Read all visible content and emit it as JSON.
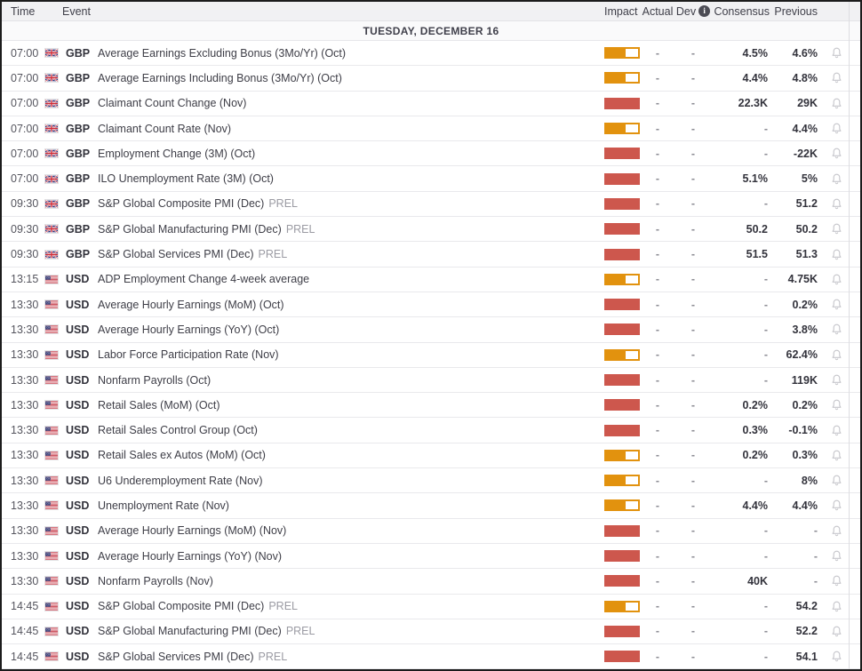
{
  "table": {
    "columns": {
      "time": "Time",
      "event": "Event",
      "impact": "Impact",
      "actual": "Actual",
      "dev": "Dev",
      "consensus": "Consensus",
      "previous": "Previous"
    },
    "dev_info_glyph": "i",
    "day_banner": "TUESDAY, DECEMBER 16"
  },
  "colors": {
    "impact_high": "#cd574d",
    "impact_medium": "#e2920e",
    "bell": "#c6c6cb"
  },
  "rows": [
    {
      "time": "07:00",
      "currency": "GBP",
      "country": "gb",
      "event": "Average Earnings Excluding Bonus (3Mo/Yr) (Oct)",
      "note": "",
      "impact": "medium",
      "actual": "-",
      "dev": "-",
      "consensus": "4.5%",
      "previous": "4.6%"
    },
    {
      "time": "07:00",
      "currency": "GBP",
      "country": "gb",
      "event": "Average Earnings Including Bonus (3Mo/Yr) (Oct)",
      "note": "",
      "impact": "medium",
      "actual": "-",
      "dev": "-",
      "consensus": "4.4%",
      "previous": "4.8%"
    },
    {
      "time": "07:00",
      "currency": "GBP",
      "country": "gb",
      "event": "Claimant Count Change (Nov)",
      "note": "",
      "impact": "high",
      "actual": "-",
      "dev": "-",
      "consensus": "22.3K",
      "previous": "29K"
    },
    {
      "time": "07:00",
      "currency": "GBP",
      "country": "gb",
      "event": "Claimant Count Rate (Nov)",
      "note": "",
      "impact": "medium",
      "actual": "-",
      "dev": "-",
      "consensus": "-",
      "previous": "4.4%"
    },
    {
      "time": "07:00",
      "currency": "GBP",
      "country": "gb",
      "event": "Employment Change (3M) (Oct)",
      "note": "",
      "impact": "high",
      "actual": "-",
      "dev": "-",
      "consensus": "-",
      "previous": "-22K"
    },
    {
      "time": "07:00",
      "currency": "GBP",
      "country": "gb",
      "event": "ILO Unemployment Rate (3M) (Oct)",
      "note": "",
      "impact": "high",
      "actual": "-",
      "dev": "-",
      "consensus": "5.1%",
      "previous": "5%"
    },
    {
      "time": "09:30",
      "currency": "GBP",
      "country": "gb",
      "event": "S&P Global Composite PMI (Dec)",
      "note": "PREL",
      "impact": "high",
      "actual": "-",
      "dev": "-",
      "consensus": "-",
      "previous": "51.2"
    },
    {
      "time": "09:30",
      "currency": "GBP",
      "country": "gb",
      "event": "S&P Global Manufacturing PMI (Dec)",
      "note": "PREL",
      "impact": "high",
      "actual": "-",
      "dev": "-",
      "consensus": "50.2",
      "previous": "50.2"
    },
    {
      "time": "09:30",
      "currency": "GBP",
      "country": "gb",
      "event": "S&P Global Services PMI (Dec)",
      "note": "PREL",
      "impact": "high",
      "actual": "-",
      "dev": "-",
      "consensus": "51.5",
      "previous": "51.3"
    },
    {
      "time": "13:15",
      "currency": "USD",
      "country": "us",
      "event": "ADP Employment Change 4-week average",
      "note": "",
      "impact": "medium",
      "actual": "-",
      "dev": "-",
      "consensus": "-",
      "previous": "4.75K"
    },
    {
      "time": "13:30",
      "currency": "USD",
      "country": "us",
      "event": "Average Hourly Earnings (MoM) (Oct)",
      "note": "",
      "impact": "high",
      "actual": "-",
      "dev": "-",
      "consensus": "-",
      "previous": "0.2%"
    },
    {
      "time": "13:30",
      "currency": "USD",
      "country": "us",
      "event": "Average Hourly Earnings (YoY) (Oct)",
      "note": "",
      "impact": "high",
      "actual": "-",
      "dev": "-",
      "consensus": "-",
      "previous": "3.8%"
    },
    {
      "time": "13:30",
      "currency": "USD",
      "country": "us",
      "event": "Labor Force Participation Rate (Nov)",
      "note": "",
      "impact": "medium",
      "actual": "-",
      "dev": "-",
      "consensus": "-",
      "previous": "62.4%"
    },
    {
      "time": "13:30",
      "currency": "USD",
      "country": "us",
      "event": "Nonfarm Payrolls (Oct)",
      "note": "",
      "impact": "high",
      "actual": "-",
      "dev": "-",
      "consensus": "-",
      "previous": "119K"
    },
    {
      "time": "13:30",
      "currency": "USD",
      "country": "us",
      "event": "Retail Sales (MoM) (Oct)",
      "note": "",
      "impact": "high",
      "actual": "-",
      "dev": "-",
      "consensus": "0.2%",
      "previous": "0.2%"
    },
    {
      "time": "13:30",
      "currency": "USD",
      "country": "us",
      "event": "Retail Sales Control Group (Oct)",
      "note": "",
      "impact": "high",
      "actual": "-",
      "dev": "-",
      "consensus": "0.3%",
      "previous": "-0.1%"
    },
    {
      "time": "13:30",
      "currency": "USD",
      "country": "us",
      "event": "Retail Sales ex Autos (MoM) (Oct)",
      "note": "",
      "impact": "medium",
      "actual": "-",
      "dev": "-",
      "consensus": "0.2%",
      "previous": "0.3%"
    },
    {
      "time": "13:30",
      "currency": "USD",
      "country": "us",
      "event": "U6 Underemployment Rate (Nov)",
      "note": "",
      "impact": "medium",
      "actual": "-",
      "dev": "-",
      "consensus": "-",
      "previous": "8%"
    },
    {
      "time": "13:30",
      "currency": "USD",
      "country": "us",
      "event": "Unemployment Rate (Nov)",
      "note": "",
      "impact": "medium",
      "actual": "-",
      "dev": "-",
      "consensus": "4.4%",
      "previous": "4.4%"
    },
    {
      "time": "13:30",
      "currency": "USD",
      "country": "us",
      "event": "Average Hourly Earnings (MoM) (Nov)",
      "note": "",
      "impact": "high",
      "actual": "-",
      "dev": "-",
      "consensus": "-",
      "previous": "-"
    },
    {
      "time": "13:30",
      "currency": "USD",
      "country": "us",
      "event": "Average Hourly Earnings (YoY) (Nov)",
      "note": "",
      "impact": "high",
      "actual": "-",
      "dev": "-",
      "consensus": "-",
      "previous": "-"
    },
    {
      "time": "13:30",
      "currency": "USD",
      "country": "us",
      "event": "Nonfarm Payrolls (Nov)",
      "note": "",
      "impact": "high",
      "actual": "-",
      "dev": "-",
      "consensus": "40K",
      "previous": "-"
    },
    {
      "time": "14:45",
      "currency": "USD",
      "country": "us",
      "event": "S&P Global Composite PMI (Dec)",
      "note": "PREL",
      "impact": "medium",
      "actual": "-",
      "dev": "-",
      "consensus": "-",
      "previous": "54.2"
    },
    {
      "time": "14:45",
      "currency": "USD",
      "country": "us",
      "event": "S&P Global Manufacturing PMI (Dec)",
      "note": "PREL",
      "impact": "high",
      "actual": "-",
      "dev": "-",
      "consensus": "-",
      "previous": "52.2"
    },
    {
      "time": "14:45",
      "currency": "USD",
      "country": "us",
      "event": "S&P Global Services PMI (Dec)",
      "note": "PREL",
      "impact": "high",
      "actual": "-",
      "dev": "-",
      "consensus": "-",
      "previous": "54.1"
    }
  ]
}
